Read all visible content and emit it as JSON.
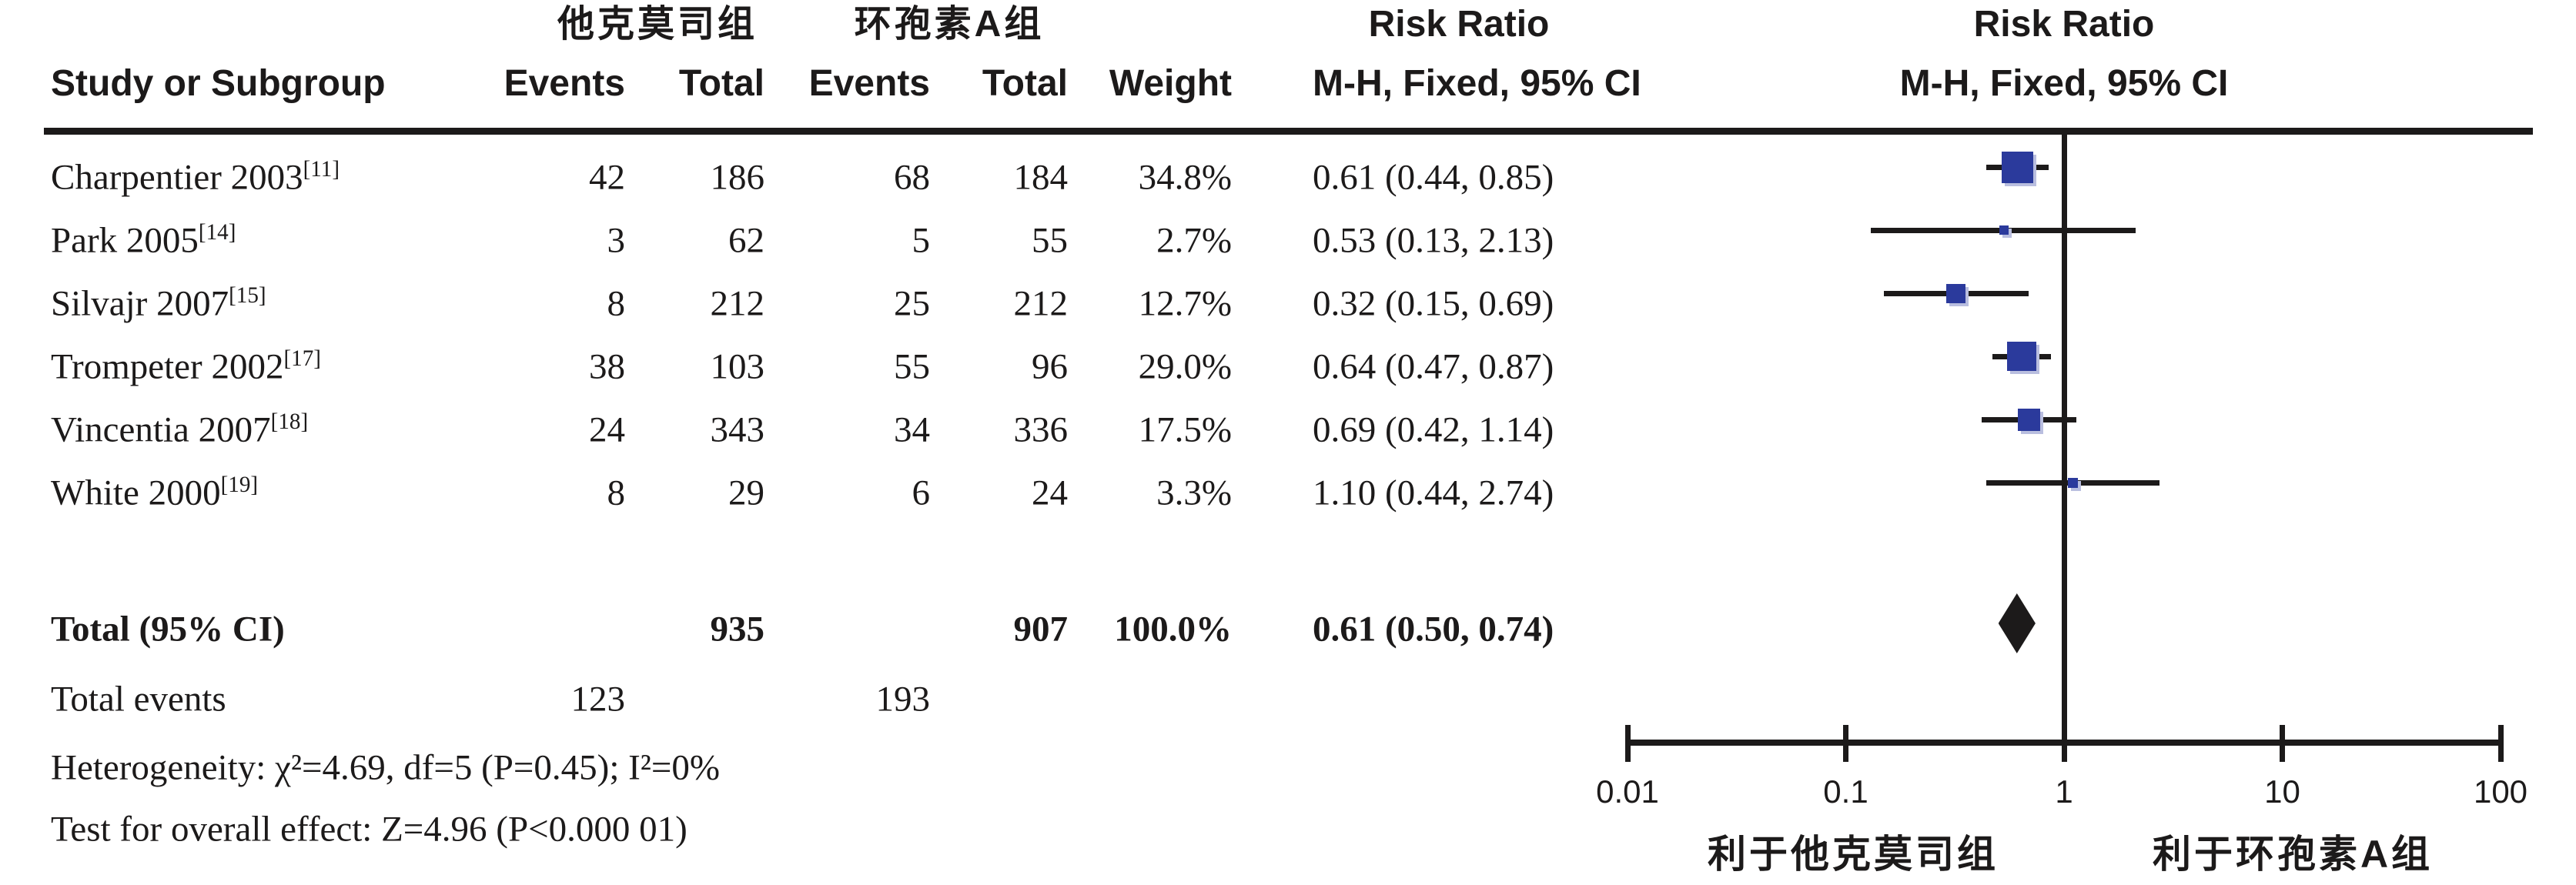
{
  "header": {
    "group1": "他克莫司组",
    "group2": "环孢素A组",
    "risk_ratio_left": "Risk Ratio",
    "risk_ratio_right": "Risk Ratio",
    "study": "Study or Subgroup",
    "events1": "Events",
    "total1": "Total",
    "events2": "Events",
    "total2": "Total",
    "weight": "Weight",
    "method_left": "M-H, Fixed, 95% CI",
    "method_right": "M-H, Fixed, 95% CI"
  },
  "chart_data": {
    "type": "forest",
    "x_scale": "log10",
    "x_range": [
      0.01,
      100
    ],
    "x_ticks": [
      {
        "label": "0.01",
        "value": 0.01
      },
      {
        "label": "0.1",
        "value": 0.1
      },
      {
        "label": "1",
        "value": 1
      },
      {
        "label": "10",
        "value": 10
      },
      {
        "label": "100",
        "value": 100
      }
    ],
    "effect_measure": "Risk Ratio",
    "method": "M-H, Fixed, 95% CI",
    "square_color": "#2b3a9c",
    "diamond_color": "#1c1a1a",
    "studies": [
      {
        "name": "Charpentier 2003",
        "ref": "[11]",
        "events1": "42",
        "total1": "186",
        "events2": "68",
        "total2": "184",
        "weight": "34.8%",
        "weight_value": 34.8,
        "rr": 0.61,
        "ci_low": 0.44,
        "ci_high": 0.85,
        "estimate_text": "0.61 (0.44, 0.85)"
      },
      {
        "name": "Park 2005",
        "ref": "[14]",
        "events1": "3",
        "total1": "62",
        "events2": "5",
        "total2": "55",
        "weight": "2.7%",
        "weight_value": 2.7,
        "rr": 0.53,
        "ci_low": 0.13,
        "ci_high": 2.13,
        "estimate_text": "0.53 (0.13, 2.13)"
      },
      {
        "name": "Silvajr 2007",
        "ref": "[15]",
        "events1": "8",
        "total1": "212",
        "events2": "25",
        "total2": "212",
        "weight": "12.7%",
        "weight_value": 12.7,
        "rr": 0.32,
        "ci_low": 0.15,
        "ci_high": 0.69,
        "estimate_text": "0.32 (0.15, 0.69)"
      },
      {
        "name": "Trompeter 2002",
        "ref": "[17]",
        "events1": "38",
        "total1": "103",
        "events2": "55",
        "total2": "96",
        "weight": "29.0%",
        "weight_value": 29.0,
        "rr": 0.64,
        "ci_low": 0.47,
        "ci_high": 0.87,
        "estimate_text": "0.64 (0.47, 0.87)"
      },
      {
        "name": "Vincentia 2007",
        "ref": "[18]",
        "events1": "24",
        "total1": "343",
        "events2": "34",
        "total2": "336",
        "weight": "17.5%",
        "weight_value": 17.5,
        "rr": 0.69,
        "ci_low": 0.42,
        "ci_high": 1.14,
        "estimate_text": "0.69 (0.42, 1.14)"
      },
      {
        "name": "White 2000",
        "ref": "[19]",
        "events1": "8",
        "total1": "29",
        "events2": "6",
        "total2": "24",
        "weight": "3.3%",
        "weight_value": 3.3,
        "rr": 1.1,
        "ci_low": 0.44,
        "ci_high": 2.74,
        "estimate_text": "1.10 (0.44, 2.74)"
      }
    ],
    "total": {
      "label": "Total (95% CI)",
      "total1": "935",
      "total2": "907",
      "weight": "100.0%",
      "rr": 0.61,
      "ci_low": 0.5,
      "ci_high": 0.74,
      "estimate_text": "0.61 (0.50, 0.74)"
    },
    "total_events": {
      "label": "Total events",
      "events1": "123",
      "events2": "193"
    },
    "heterogeneity": "Heterogeneity: χ²=4.69, df=5 (P=0.45); I²=0%",
    "overall_effect": "Test for overall effect: Z=4.96 (P<0.000 01)",
    "favors_left": "利于他克莫司组",
    "favors_right": "利于环孢素A组"
  }
}
